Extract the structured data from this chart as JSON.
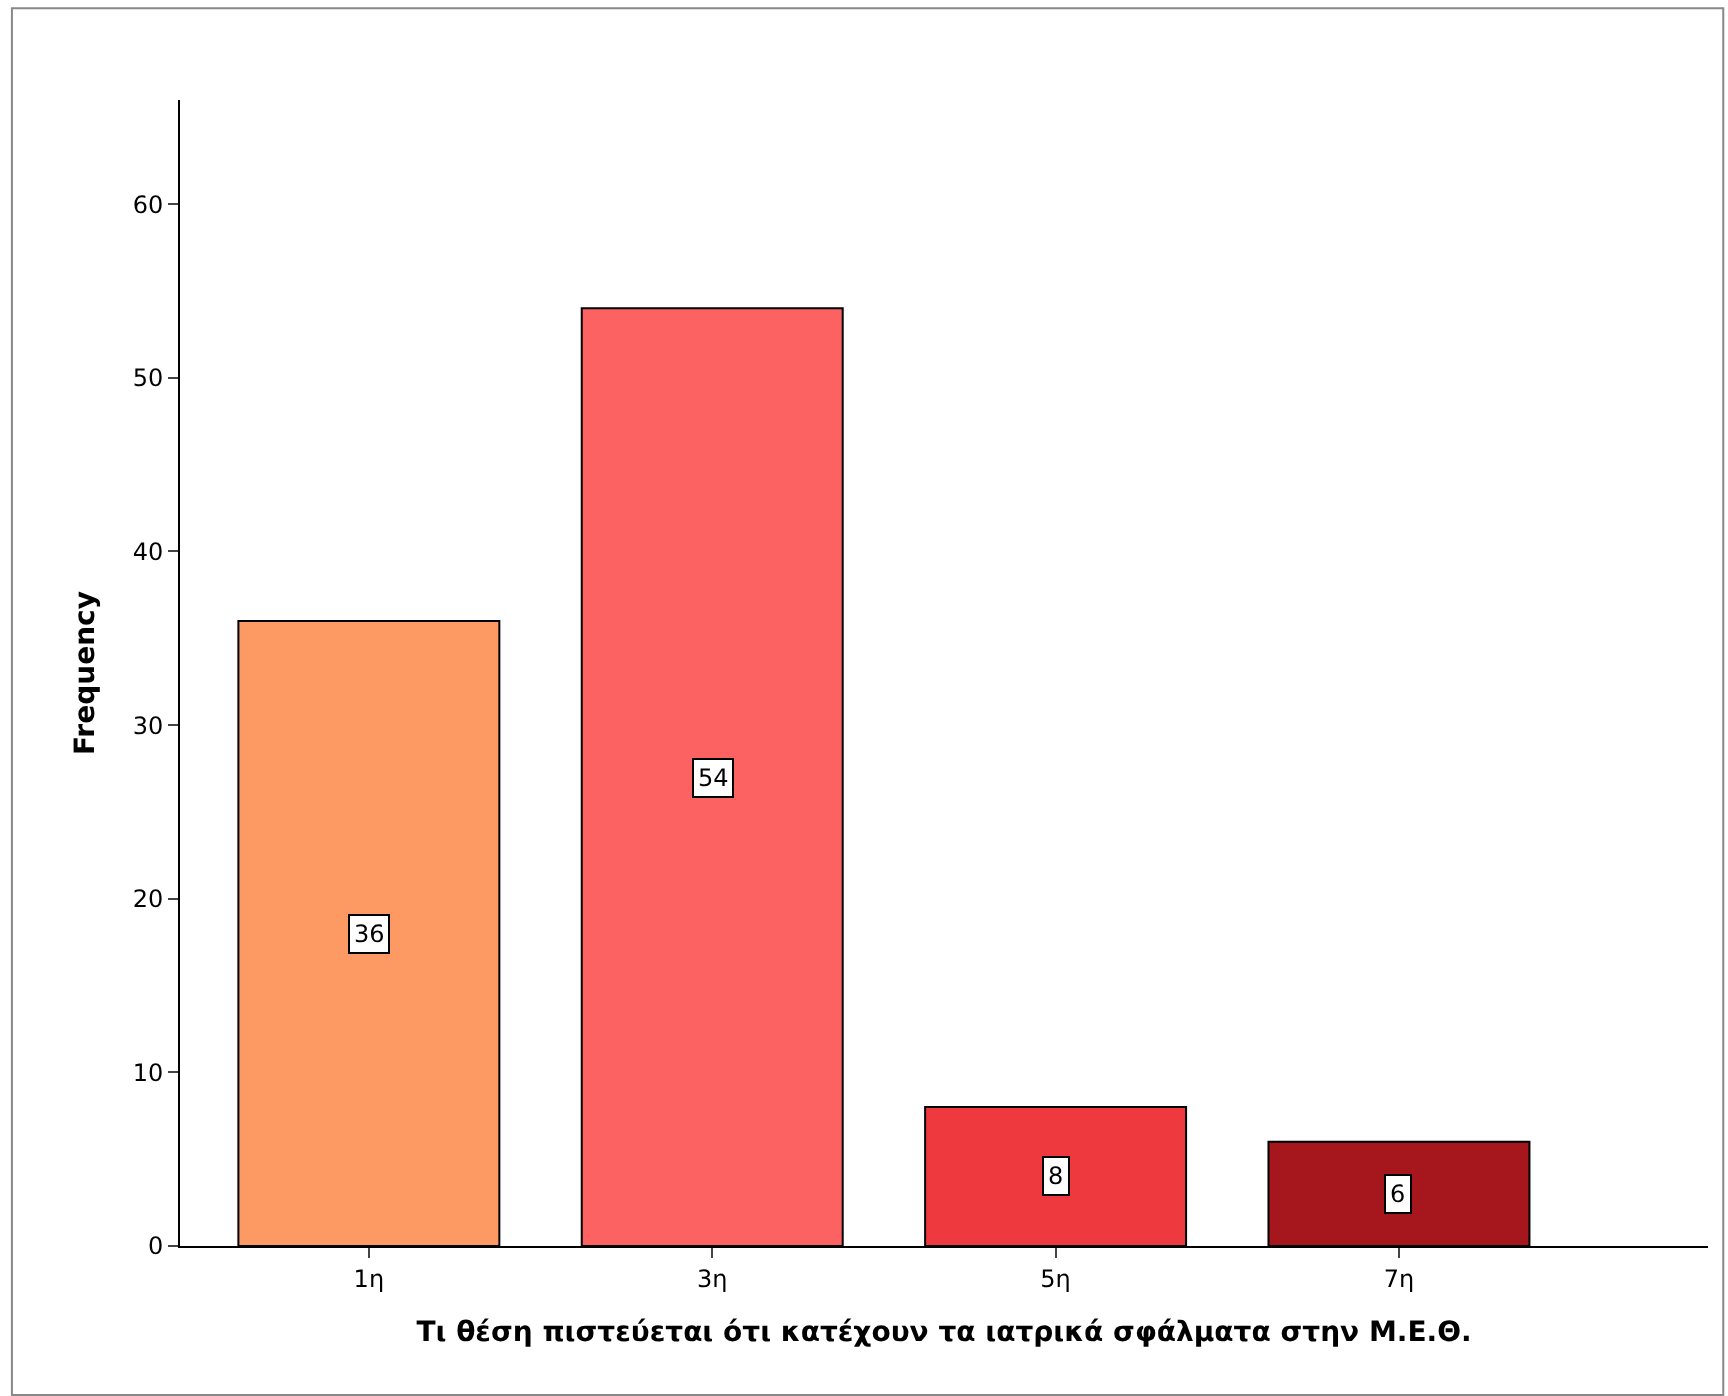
{
  "chart_data": {
    "type": "bar",
    "xlabel": "Τι θέση πιστεύεται ότι κατέχουν τα ιατρικά σφάλματα στην Μ.Ε.Θ.",
    "ylabel": "Frequency",
    "categories": [
      "1η",
      "3η",
      "5η",
      "7η"
    ],
    "values": [
      36,
      54,
      8,
      6
    ],
    "colors": [
      "#fd9a63",
      "#fd6262",
      "#ee3a3f",
      "#a5171c"
    ],
    "ylim": [
      0,
      66
    ],
    "yticks": [
      0,
      10,
      20,
      30,
      40,
      50,
      60
    ],
    "data_labels": true
  }
}
